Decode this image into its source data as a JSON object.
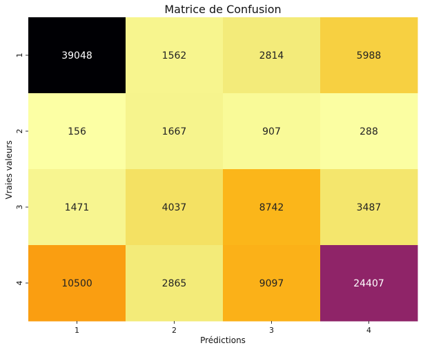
{
  "chart_data": {
    "type": "heatmap",
    "title": "Matrice de Confusion",
    "xlabel": "Prédictions",
    "ylabel": "Vraies valeurs",
    "x_categories": [
      "1",
      "2",
      "3",
      "4"
    ],
    "y_categories": [
      "1",
      "2",
      "3",
      "4"
    ],
    "values": [
      [
        39048,
        1562,
        2814,
        5988
      ],
      [
        156,
        1667,
        907,
        288
      ],
      [
        1471,
        4037,
        8742,
        3487
      ],
      [
        10500,
        2865,
        9097,
        24407
      ]
    ],
    "colormap": "inferno_r",
    "colorbar": false,
    "annotations": true,
    "grid": false
  }
}
